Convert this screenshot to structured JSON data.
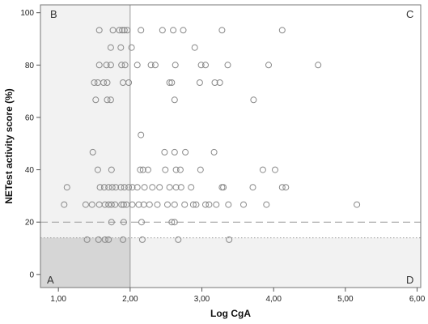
{
  "chart_data": {
    "type": "scatter",
    "xlabel": "Log CgA",
    "ylabel": "NETest activity score (%)",
    "xlim": [
      0.75,
      6.05
    ],
    "ylim": [
      -5,
      103
    ],
    "x_ticks": [
      "1,00",
      "2,00",
      "3,00",
      "4,00",
      "5,00",
      "6,00"
    ],
    "y_ticks": [
      "0",
      "20",
      "40",
      "60",
      "80",
      "100"
    ],
    "x_tick_values": [
      1,
      2,
      3,
      4,
      5,
      6
    ],
    "y_tick_values": [
      0,
      20,
      40,
      60,
      80,
      100
    ],
    "quadrant_labels": {
      "A": "A",
      "B": "B",
      "C": "C",
      "D": "D"
    },
    "vertical_cutoff_x": 2.0,
    "horizontal_cutoff_dashed_y": 20,
    "horizontal_cutoff_dotted_y": 14,
    "colors": {
      "marker": "#8a8a8a",
      "region_light": "#f2f2f2",
      "region_dark": "#d6d6d6",
      "cutoff_line": "#999999"
    },
    "series": [
      {
        "values": [
          [
            1.57,
            93.3
          ],
          [
            1.76,
            93.3
          ],
          [
            1.85,
            93.3
          ],
          [
            1.89,
            93.3
          ],
          [
            1.92,
            93.3
          ],
          [
            1.96,
            93.3
          ],
          [
            2.15,
            93.3
          ],
          [
            2.45,
            93.3
          ],
          [
            2.6,
            93.3
          ],
          [
            2.74,
            93.3
          ],
          [
            3.28,
            93.3
          ],
          [
            4.12,
            93.3
          ],
          [
            1.73,
            86.7
          ],
          [
            1.87,
            86.7
          ],
          [
            2.02,
            86.7
          ],
          [
            2.9,
            86.7
          ],
          [
            1.57,
            80
          ],
          [
            1.67,
            80
          ],
          [
            1.73,
            80
          ],
          [
            1.88,
            80
          ],
          [
            1.93,
            80
          ],
          [
            2.1,
            80
          ],
          [
            2.29,
            80
          ],
          [
            2.35,
            80
          ],
          [
            2.63,
            80
          ],
          [
            2.99,
            80
          ],
          [
            3.05,
            80
          ],
          [
            3.36,
            80
          ],
          [
            3.93,
            80
          ],
          [
            4.62,
            80
          ],
          [
            1.5,
            73.3
          ],
          [
            1.55,
            73.3
          ],
          [
            1.63,
            73.3
          ],
          [
            1.68,
            73.3
          ],
          [
            1.9,
            73.3
          ],
          [
            1.98,
            73.3
          ],
          [
            2.55,
            73.3
          ],
          [
            2.58,
            73.3
          ],
          [
            2.97,
            73.3
          ],
          [
            3.18,
            73.3
          ],
          [
            3.25,
            73.3
          ],
          [
            1.52,
            66.7
          ],
          [
            1.68,
            66.7
          ],
          [
            1.73,
            66.7
          ],
          [
            2.62,
            66.7
          ],
          [
            3.72,
            66.7
          ],
          [
            2.15,
            53.3
          ],
          [
            1.48,
            46.7
          ],
          [
            2.48,
            46.7
          ],
          [
            2.62,
            46.7
          ],
          [
            2.77,
            46.7
          ],
          [
            3.17,
            46.7
          ],
          [
            1.55,
            40
          ],
          [
            1.74,
            40
          ],
          [
            2.14,
            40
          ],
          [
            2.18,
            40
          ],
          [
            2.25,
            40
          ],
          [
            2.49,
            40
          ],
          [
            2.64,
            40
          ],
          [
            2.7,
            40
          ],
          [
            2.98,
            40
          ],
          [
            3.85,
            40
          ],
          [
            4.02,
            40
          ],
          [
            1.12,
            33.3
          ],
          [
            1.58,
            33.3
          ],
          [
            1.64,
            33.3
          ],
          [
            1.7,
            33.3
          ],
          [
            1.75,
            33.3
          ],
          [
            1.8,
            33.3
          ],
          [
            1.87,
            33.3
          ],
          [
            1.92,
            33.3
          ],
          [
            1.98,
            33.3
          ],
          [
            2.03,
            33.3
          ],
          [
            2.1,
            33.3
          ],
          [
            2.2,
            33.3
          ],
          [
            2.31,
            33.3
          ],
          [
            2.41,
            33.3
          ],
          [
            2.55,
            33.3
          ],
          [
            2.64,
            33.3
          ],
          [
            2.71,
            33.3
          ],
          [
            2.85,
            33.3
          ],
          [
            3.28,
            33.3
          ],
          [
            3.3,
            33.3
          ],
          [
            3.71,
            33.3
          ],
          [
            4.12,
            33.3
          ],
          [
            4.17,
            33.3
          ],
          [
            1.08,
            26.7
          ],
          [
            1.38,
            26.7
          ],
          [
            1.47,
            26.7
          ],
          [
            1.57,
            26.7
          ],
          [
            1.65,
            26.7
          ],
          [
            1.7,
            26.7
          ],
          [
            1.74,
            26.7
          ],
          [
            1.79,
            26.7
          ],
          [
            1.88,
            26.7
          ],
          [
            1.91,
            26.7
          ],
          [
            1.95,
            26.7
          ],
          [
            2.03,
            26.7
          ],
          [
            2.12,
            26.7
          ],
          [
            2.19,
            26.7
          ],
          [
            2.27,
            26.7
          ],
          [
            2.38,
            26.7
          ],
          [
            2.52,
            26.7
          ],
          [
            2.62,
            26.7
          ],
          [
            2.76,
            26.7
          ],
          [
            2.88,
            26.7
          ],
          [
            2.92,
            26.7
          ],
          [
            3.05,
            26.7
          ],
          [
            3.1,
            26.7
          ],
          [
            3.2,
            26.7
          ],
          [
            3.37,
            26.7
          ],
          [
            3.58,
            26.7
          ],
          [
            3.9,
            26.7
          ],
          [
            5.16,
            26.7
          ],
          [
            1.74,
            20
          ],
          [
            1.91,
            20
          ],
          [
            2.16,
            20
          ],
          [
            2.58,
            20
          ],
          [
            2.62,
            20
          ],
          [
            1.4,
            13.3
          ],
          [
            1.56,
            13.3
          ],
          [
            1.65,
            13.3
          ],
          [
            1.7,
            13.3
          ],
          [
            1.9,
            13.3
          ],
          [
            2.17,
            13.3
          ],
          [
            2.67,
            13.3
          ],
          [
            3.38,
            13.3
          ]
        ]
      }
    ]
  }
}
